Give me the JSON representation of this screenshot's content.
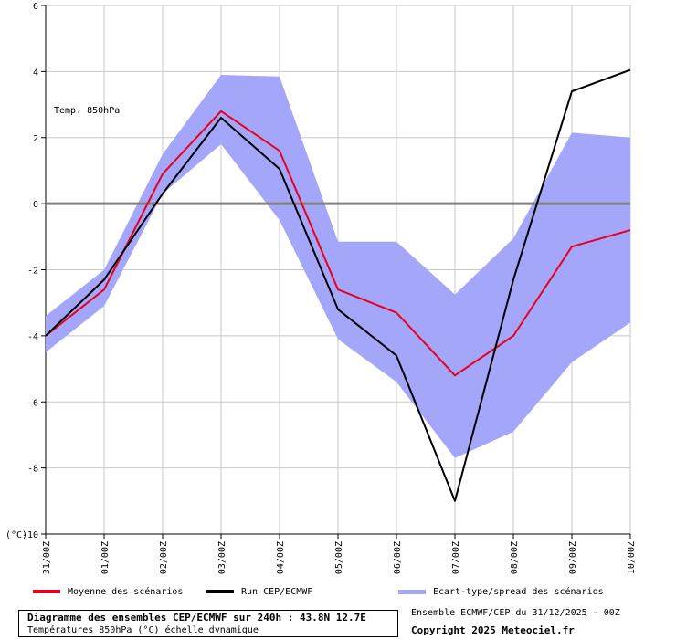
{
  "chart_data": {
    "type": "line",
    "annotation": "Temp. 850hPa",
    "y_unit_label": "(°C)",
    "x": [
      "31/00Z",
      "01/00Z",
      "02/00Z",
      "03/00Z",
      "04/00Z",
      "05/00Z",
      "06/00Z",
      "07/00Z",
      "08/00Z",
      "09/00Z",
      "10/00Z"
    ],
    "ylim": [
      -10,
      6
    ],
    "yticks": [
      6,
      4,
      2,
      0,
      -2,
      -4,
      -6,
      -8,
      -10
    ],
    "grid": true,
    "legend_position": "bottom",
    "series": [
      {
        "name": "Moyenne des scénarios",
        "type": "line",
        "color": "#e8001c",
        "values": [
          -4.0,
          -2.6,
          0.9,
          2.8,
          1.6,
          -2.6,
          -3.3,
          -5.2,
          -4.0,
          -1.3,
          -0.8
        ]
      },
      {
        "name": "Run CEP/ECMWF",
        "type": "line",
        "color": "#000000",
        "values": [
          -4.0,
          -2.3,
          0.3,
          2.6,
          1.05,
          -3.2,
          -4.6,
          -9.0,
          -2.3,
          3.4,
          4.05
        ]
      },
      {
        "name": "Ecart-type/spread des scénarios",
        "type": "band",
        "color": "#a4a6fa",
        "upper": [
          -3.4,
          -2.0,
          1.5,
          3.9,
          3.85,
          -1.15,
          -1.15,
          -2.75,
          -1.05,
          2.15,
          2.0
        ],
        "lower": [
          -4.5,
          -3.1,
          0.3,
          1.8,
          -0.5,
          -4.1,
          -5.4,
          -7.7,
          -6.9,
          -4.8,
          -3.6
        ]
      }
    ]
  },
  "footer": {
    "title": "Diagramme des ensembles CEP/ECMWF sur 240h : 43.8N 12.7E",
    "subtitle": "Températures 850hPa (°C) échelle dynamique",
    "run_info": "Ensemble ECMWF/CEP du 31/12/2025 - 00Z",
    "copyright": "Copyright 2025 Meteociel.fr"
  }
}
